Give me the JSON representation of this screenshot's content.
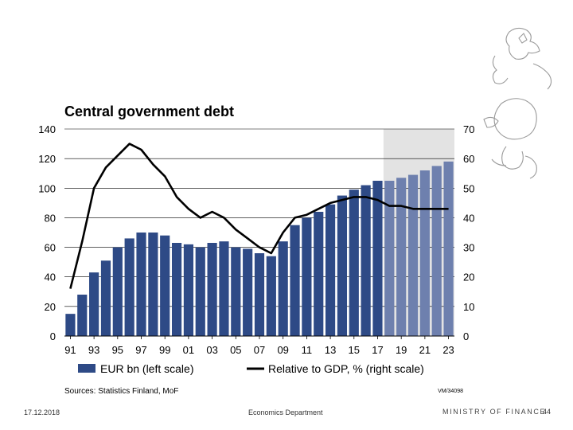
{
  "chart_data": {
    "type": "bar",
    "title": "Central government debt",
    "categories": [
      "91",
      "92",
      "93",
      "94",
      "95",
      "96",
      "97",
      "98",
      "99",
      "00",
      "01",
      "02",
      "03",
      "04",
      "05",
      "06",
      "07",
      "08",
      "09",
      "10",
      "11",
      "12",
      "13",
      "14",
      "15",
      "16",
      "17",
      "18",
      "19",
      "20",
      "21",
      "22",
      "23"
    ],
    "x_tick_labels": [
      "91",
      "93",
      "95",
      "97",
      "99",
      "01",
      "03",
      "05",
      "07",
      "09",
      "11",
      "13",
      "15",
      "17",
      "19",
      "21",
      "23"
    ],
    "series": [
      {
        "name": "EUR bn (left scale)",
        "type": "bar",
        "axis": "left",
        "values": [
          15,
          28,
          43,
          51,
          60,
          66,
          70,
          70,
          68,
          63,
          62,
          60,
          63,
          64,
          60,
          59,
          56,
          54,
          64,
          75,
          80,
          84,
          89,
          95,
          99,
          102,
          105,
          105,
          107,
          109,
          112,
          115,
          118
        ]
      },
      {
        "name": "Relative to GDP, % (right scale)",
        "type": "line",
        "axis": "right",
        "values": [
          16,
          32,
          50,
          57,
          61,
          65,
          63,
          58,
          54,
          47,
          43,
          40,
          42,
          40,
          36,
          33,
          30,
          28,
          35,
          40,
          41,
          43,
          45,
          46,
          47,
          47,
          46,
          44,
          44,
          43,
          43,
          43,
          43
        ]
      }
    ],
    "forecast_shading_from": "18",
    "left_axis": {
      "ylim": [
        0,
        140
      ],
      "ticks": [
        "0",
        "20",
        "40",
        "60",
        "80",
        "100",
        "120",
        "140"
      ]
    },
    "right_axis": {
      "ylim": [
        0,
        70
      ],
      "ticks": [
        "0",
        "10",
        "20",
        "30",
        "40",
        "50",
        "60",
        "70"
      ]
    },
    "grid": "horizontal",
    "legend": {
      "position": "bottom",
      "bar_label": "EUR bn (left scale)",
      "line_label": "Relative to GDP, % (right scale)"
    },
    "source": "Sources: Statistics Finland, MoF",
    "chart_id": "VM/34098"
  },
  "colors": {
    "bar_actual": "#2e4a86",
    "bar_forecast": "#6e80ae",
    "forecast_bg": "#e3e3e3",
    "line": "#000000",
    "grid": "#000000"
  },
  "footer": {
    "date": "17.12.2018",
    "department": "Economics Department",
    "ministry": "MINISTRY OF FINANCE",
    "page": "44"
  },
  "crest_icon": "lion-crest-icon"
}
